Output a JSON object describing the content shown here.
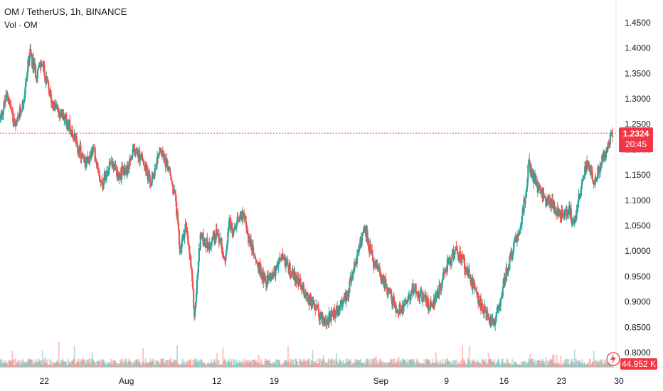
{
  "legend": {
    "symbol_line": "OM / TetherUS, 1h, BINANCE",
    "volume_line": "Vol · OM"
  },
  "price_label": {
    "value": "1.2324",
    "countdown": "20:45"
  },
  "volume_label": "44.952 K",
  "colors": {
    "up": "#26a69a",
    "down": "#ef5350",
    "up_volume": "#26a69a55",
    "down_volume": "#ef535055",
    "price_line": "#f23645",
    "alert_icon": "#f23645"
  },
  "icons": {
    "alert": "lightning-alert-icon"
  },
  "chart_data": {
    "type": "candlestick",
    "title": "OM / TetherUS, 1h, BINANCE",
    "ylim": [
      0.8,
      1.475
    ],
    "y_ticks": [
      "0.8000",
      "0.8500",
      "0.9000",
      "0.9500",
      "1.0000",
      "1.0500",
      "1.1000",
      "1.1500",
      "1.2000",
      "1.2500",
      "1.3000",
      "1.3500",
      "1.4000",
      "1.4500"
    ],
    "x_ticks": [
      {
        "label": "22",
        "day": 22
      },
      {
        "label": "Aug",
        "day": 32
      },
      {
        "label": "12",
        "day": 43
      },
      {
        "label": "19",
        "day": 50
      },
      {
        "label": "Sep",
        "day": 63
      },
      {
        "label": "9",
        "day": 71
      },
      {
        "label": "16",
        "day": 78
      },
      {
        "label": "23",
        "day": 85
      },
      {
        "label": "30",
        "day": 92
      }
    ],
    "x_range_days": [
      16.6,
      91.3
    ],
    "last_price": 1.2324,
    "close_path": [
      [
        16.6,
        1.26
      ],
      [
        17.5,
        1.31
      ],
      [
        18.5,
        1.24
      ],
      [
        19.5,
        1.3
      ],
      [
        20.2,
        1.39
      ],
      [
        21.0,
        1.35
      ],
      [
        21.7,
        1.37
      ],
      [
        22.3,
        1.33
      ],
      [
        23.0,
        1.29
      ],
      [
        24.0,
        1.27
      ],
      [
        25.0,
        1.25
      ],
      [
        26.0,
        1.21
      ],
      [
        27.0,
        1.17
      ],
      [
        28.0,
        1.2
      ],
      [
        28.5,
        1.17
      ],
      [
        29.0,
        1.13
      ],
      [
        30.0,
        1.18
      ],
      [
        31.0,
        1.15
      ],
      [
        32.0,
        1.16
      ],
      [
        33.0,
        1.2
      ],
      [
        34.0,
        1.18
      ],
      [
        35.0,
        1.13
      ],
      [
        36.0,
        1.2
      ],
      [
        37.0,
        1.17
      ],
      [
        38.0,
        1.1
      ],
      [
        38.5,
        1.0
      ],
      [
        39.2,
        1.05
      ],
      [
        39.8,
        0.98
      ],
      [
        40.3,
        0.87
      ],
      [
        41.0,
        1.03
      ],
      [
        42.0,
        1.01
      ],
      [
        43.0,
        1.04
      ],
      [
        44.0,
        0.99
      ],
      [
        44.5,
        1.06
      ],
      [
        45.0,
        1.03
      ],
      [
        46.0,
        1.08
      ],
      [
        47.0,
        1.02
      ],
      [
        48.0,
        0.97
      ],
      [
        49.0,
        0.94
      ],
      [
        50.0,
        0.96
      ],
      [
        51.0,
        0.99
      ],
      [
        52.0,
        0.96
      ],
      [
        53.0,
        0.94
      ],
      [
        54.0,
        0.91
      ],
      [
        55.0,
        0.89
      ],
      [
        56.0,
        0.86
      ],
      [
        57.0,
        0.87
      ],
      [
        58.0,
        0.89
      ],
      [
        59.0,
        0.92
      ],
      [
        60.0,
        0.98
      ],
      [
        61.0,
        1.05
      ],
      [
        62.0,
        0.98
      ],
      [
        63.0,
        0.95
      ],
      [
        64.0,
        0.92
      ],
      [
        65.0,
        0.88
      ],
      [
        66.0,
        0.9
      ],
      [
        67.0,
        0.93
      ],
      [
        68.0,
        0.91
      ],
      [
        69.0,
        0.89
      ],
      [
        70.0,
        0.92
      ],
      [
        71.0,
        0.97
      ],
      [
        72.0,
        1.0
      ],
      [
        73.0,
        0.98
      ],
      [
        74.0,
        0.94
      ],
      [
        75.0,
        0.9
      ],
      [
        76.0,
        0.87
      ],
      [
        77.0,
        0.86
      ],
      [
        78.0,
        0.94
      ],
      [
        79.0,
        1.0
      ],
      [
        80.0,
        1.05
      ],
      [
        80.5,
        1.1
      ],
      [
        81.0,
        1.17
      ],
      [
        82.0,
        1.13
      ],
      [
        83.0,
        1.1
      ],
      [
        84.0,
        1.09
      ],
      [
        85.0,
        1.07
      ],
      [
        86.0,
        1.08
      ],
      [
        86.5,
        1.05
      ],
      [
        87.0,
        1.1
      ],
      [
        88.0,
        1.17
      ],
      [
        89.0,
        1.14
      ],
      [
        90.0,
        1.18
      ],
      [
        91.3,
        1.2324
      ]
    ]
  }
}
